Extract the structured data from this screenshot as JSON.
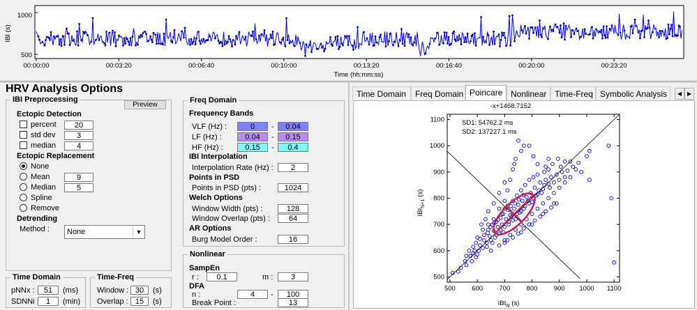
{
  "ibi_plot": {
    "ylabel": "IBI (s)",
    "yticks": [
      "1000",
      "500"
    ],
    "xticks": [
      "00:00:00",
      "00:03:20",
      "00:06:40",
      "00:10:00",
      "00:13:20",
      "00:16:40",
      "00:20:00",
      "00:23:20"
    ],
    "xlabel": "Time (hh:mm:ss)"
  },
  "title": "HRV Analysis Options",
  "ibi_preprocessing": {
    "legend": "IBI Preprocessing",
    "preview_label": "Preview",
    "ectopic_detection": {
      "label": "Ectopic Detection",
      "items": [
        {
          "label": "percent",
          "value": "20",
          "checked": false
        },
        {
          "label": "std dev",
          "value": "3",
          "checked": false
        },
        {
          "label": "median",
          "value": "4",
          "checked": false
        }
      ]
    },
    "ectopic_replacement": {
      "label": "Ectopic Replacement",
      "options": [
        {
          "label": "None",
          "selected": true,
          "value": ""
        },
        {
          "label": "Mean",
          "selected": false,
          "value": "9"
        },
        {
          "label": "Median",
          "selected": false,
          "value": "5"
        },
        {
          "label": "Spline",
          "selected": false,
          "value": ""
        },
        {
          "label": "Remove",
          "selected": false,
          "value": ""
        }
      ]
    },
    "detrending": {
      "label": "Detrending",
      "method_label": "Method :",
      "method_value": "None"
    }
  },
  "freq_domain": {
    "legend": "Freq Domain",
    "bands_label": "Frequency Bands",
    "bands": [
      {
        "label": "VLF (Hz) :",
        "low": "0",
        "high": "0.04",
        "color": "#7f7fff"
      },
      {
        "label": "LF (Hz) :",
        "low": "0.04",
        "high": "0.15",
        "color": "#b78af5"
      },
      {
        "label": "HF (Hz) :",
        "low": "0.15",
        "high": "0.4",
        "color": "#7ff5f5"
      }
    ],
    "dash": "-",
    "interp_label": "IBI Interpolation",
    "interp_rate_label": "Interpolation Rate (Hz) :",
    "interp_rate_value": "2",
    "psd_label": "Points in PSD",
    "psd_points_label": "Points in PSD (pts) :",
    "psd_points_value": "1024",
    "welch_label": "Welch Options",
    "welch_width_label": "Window Width (pts) :",
    "welch_width_value": "128",
    "welch_overlap_label": "Window Overlap (pts) :",
    "welch_overlap_value": "64",
    "ar_label": "AR Options",
    "burg_label": "Burg Model Order :",
    "burg_value": "16"
  },
  "nonlinear": {
    "legend": "Nonlinear",
    "sampen_label": "SampEn",
    "r_label": "r :",
    "r_value": "0.1",
    "m_label": "m :",
    "m_value": "3",
    "dfa_label": "DFA",
    "n_label": "n :",
    "n_low": "4",
    "n_high": "100",
    "dash": "-",
    "breakpoint_label": "Break Point :",
    "breakpoint_value": "13"
  },
  "time_domain": {
    "legend": "Time Domain",
    "pnnx_label": "pNNx :",
    "pnnx_value": "51",
    "pnnx_unit": "(ms)",
    "sdnni_label": "SDNNi :",
    "sdnni_value": "1",
    "sdnni_unit": "(min)"
  },
  "time_freq": {
    "legend": "Time-Freq",
    "window_label": "Window :",
    "window_value": "30",
    "window_unit": "(s)",
    "overlap_label": "Overlap :",
    "overlap_value": "15",
    "overlap_unit": "(s)"
  },
  "tabs": [
    {
      "label": "Time Domain",
      "active": false
    },
    {
      "label": "Freq Domain",
      "active": false
    },
    {
      "label": "Poincare",
      "active": true
    },
    {
      "label": "Nonlinear",
      "active": false
    },
    {
      "label": "Time-Freq",
      "active": false
    },
    {
      "label": "Symbolic Analysis",
      "active": false
    }
  ],
  "poincare": {
    "top_label": "-x+1468.7152",
    "sd1": "SD1: 54762.2 ms",
    "sd2": "SD2: 137227.1 ms",
    "ylabel_main": "IBI",
    "ylabel_sub": "N+1",
    "ylabel_unit": "(s)",
    "xlabel_main": "IBI",
    "xlabel_sub": "N",
    "xlabel_unit": "(s)",
    "ellipse_color": "#d01a58",
    "point_color": "#0000c8"
  },
  "chart_data": {
    "type": "scatter",
    "xlim": [
      490,
      1120
    ],
    "ylim": [
      480,
      1120
    ],
    "xticks": [
      500,
      600,
      700,
      800,
      900,
      1000,
      1100
    ],
    "yticks": [
      500,
      600,
      700,
      800,
      900,
      1000,
      1100
    ],
    "xlabel": "IBI N (s)",
    "ylabel": "IBI N+1 (s)",
    "identity_line": {
      "from": [
        490,
        490
      ],
      "to": [
        1120,
        1120
      ]
    },
    "perpendicular_line": {
      "from": [
        490,
        978.7
      ],
      "to": [
        975,
        493.7
      ]
    },
    "ellipse": {
      "center": [
        735,
        740
      ],
      "angle_deg": 45,
      "sd1": 54.8,
      "sd2": 137.2
    },
    "points": [
      [
        510,
        515
      ],
      [
        530,
        520
      ],
      [
        540,
        535
      ],
      [
        555,
        560
      ],
      [
        560,
        545
      ],
      [
        575,
        580
      ],
      [
        585,
        590
      ],
      [
        590,
        600
      ],
      [
        600,
        585
      ],
      [
        610,
        620
      ],
      [
        620,
        610
      ],
      [
        625,
        640
      ],
      [
        635,
        630
      ],
      [
        645,
        655
      ],
      [
        650,
        640
      ],
      [
        660,
        675
      ],
      [
        665,
        650
      ],
      [
        675,
        690
      ],
      [
        680,
        665
      ],
      [
        690,
        700
      ],
      [
        700,
        690
      ],
      [
        705,
        720
      ],
      [
        715,
        700
      ],
      [
        720,
        735
      ],
      [
        730,
        715
      ],
      [
        735,
        760
      ],
      [
        745,
        740
      ],
      [
        750,
        775
      ],
      [
        760,
        750
      ],
      [
        765,
        790
      ],
      [
        775,
        770
      ],
      [
        780,
        805
      ],
      [
        790,
        780
      ],
      [
        795,
        820
      ],
      [
        805,
        800
      ],
      [
        810,
        840
      ],
      [
        820,
        815
      ],
      [
        830,
        860
      ],
      [
        840,
        835
      ],
      [
        850,
        870
      ],
      [
        860,
        855
      ],
      [
        870,
        880
      ],
      [
        880,
        860
      ],
      [
        890,
        890
      ],
      [
        900,
        870
      ],
      [
        910,
        900
      ],
      [
        920,
        880
      ],
      [
        930,
        905
      ],
      [
        950,
        920
      ],
      [
        970,
        935
      ],
      [
        600,
        650
      ],
      [
        620,
        680
      ],
      [
        640,
        700
      ],
      [
        660,
        720
      ],
      [
        680,
        760
      ],
      [
        700,
        790
      ],
      [
        710,
        830
      ],
      [
        720,
        870
      ],
      [
        730,
        910
      ],
      [
        740,
        950
      ],
      [
        760,
        980
      ],
      [
        750,
        1020
      ],
      [
        770,
        1000
      ],
      [
        735,
        930
      ],
      [
        700,
        860
      ],
      [
        680,
        820
      ],
      [
        660,
        780
      ],
      [
        640,
        750
      ],
      [
        630,
        720
      ],
      [
        615,
        700
      ],
      [
        650,
        600
      ],
      [
        680,
        620
      ],
      [
        700,
        640
      ],
      [
        720,
        660
      ],
      [
        740,
        680
      ],
      [
        760,
        700
      ],
      [
        780,
        720
      ],
      [
        800,
        740
      ],
      [
        820,
        760
      ],
      [
        840,
        780
      ],
      [
        860,
        800
      ],
      [
        880,
        820
      ],
      [
        900,
        840
      ],
      [
        920,
        860
      ],
      [
        940,
        880
      ],
      [
        700,
        630
      ],
      [
        760,
        670
      ],
      [
        800,
        700
      ],
      [
        840,
        740
      ],
      [
        880,
        780
      ],
      [
        1000,
        960
      ],
      [
        1010,
        870
      ],
      [
        1080,
        1000
      ],
      [
        1090,
        800
      ],
      [
        1100,
        555
      ],
      [
        790,
        1000
      ],
      [
        805,
        960
      ],
      [
        820,
        930
      ],
      [
        860,
        950
      ],
      [
        845,
        900
      ],
      [
        580,
        560
      ],
      [
        595,
        575
      ],
      [
        605,
        600
      ],
      [
        635,
        615
      ],
      [
        655,
        630
      ],
      [
        670,
        660
      ],
      [
        685,
        680
      ],
      [
        695,
        670
      ],
      [
        715,
        710
      ],
      [
        725,
        730
      ],
      [
        740,
        720
      ],
      [
        755,
        745
      ],
      [
        770,
        760
      ],
      [
        785,
        790
      ],
      [
        800,
        785
      ],
      [
        815,
        810
      ],
      [
        825,
        830
      ],
      [
        835,
        820
      ],
      [
        845,
        850
      ],
      [
        865,
        840
      ],
      [
        690,
        740
      ],
      [
        700,
        760
      ],
      [
        710,
        770
      ],
      [
        730,
        790
      ],
      [
        745,
        810
      ],
      [
        760,
        830
      ],
      [
        775,
        850
      ],
      [
        790,
        870
      ],
      [
        805,
        880
      ],
      [
        820,
        890
      ],
      [
        640,
        680
      ],
      [
        655,
        700
      ],
      [
        670,
        710
      ],
      [
        685,
        725
      ],
      [
        695,
        740
      ],
      [
        712,
        755
      ],
      [
        722,
        770
      ],
      [
        738,
        780
      ],
      [
        752,
        795
      ],
      [
        768,
        812
      ],
      [
        560,
        580
      ],
      [
        570,
        600
      ],
      [
        585,
        615
      ],
      [
        595,
        630
      ],
      [
        610,
        645
      ],
      [
        625,
        660
      ],
      [
        638,
        668
      ],
      [
        648,
        690
      ],
      [
        662,
        705
      ],
      [
        676,
        718
      ],
      [
        710,
        640
      ],
      [
        730,
        650
      ],
      [
        750,
        665
      ],
      [
        770,
        685
      ],
      [
        790,
        700
      ],
      [
        810,
        715
      ],
      [
        830,
        730
      ],
      [
        850,
        750
      ],
      [
        870,
        765
      ],
      [
        890,
        780
      ],
      [
        1010,
        980
      ],
      [
        940,
        940
      ],
      [
        960,
        910
      ],
      [
        980,
        900
      ],
      [
        920,
        940
      ],
      [
        905,
        920
      ],
      [
        895,
        950
      ],
      [
        875,
        930
      ],
      [
        860,
        910
      ],
      [
        850,
        920
      ]
    ]
  }
}
